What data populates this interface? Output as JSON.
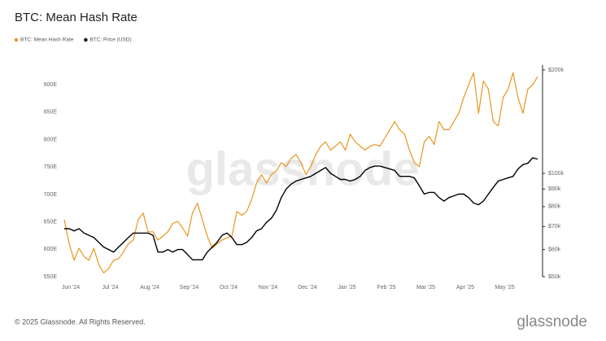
{
  "chart_data": {
    "type": "line",
    "title": "BTC: Mean Hash Rate",
    "watermark": "glassnode",
    "footer": "© 2025 Glassnode. All Rights Reserved.",
    "logo": "glassnode",
    "categories": [
      "Jun '24",
      null,
      null,
      null,
      null,
      null,
      null,
      null,
      "Jul '24",
      null,
      null,
      null,
      null,
      null,
      null,
      null,
      "Aug '24",
      null,
      null,
      null,
      null,
      null,
      null,
      null,
      "Sep '24",
      null,
      null,
      null,
      null,
      null,
      null,
      null,
      "Oct '24",
      null,
      null,
      null,
      null,
      null,
      null,
      null,
      "Nov '24",
      null,
      null,
      null,
      null,
      null,
      null,
      null,
      "Dec '24",
      null,
      null,
      null,
      null,
      null,
      null,
      null,
      "Jan '25",
      null,
      null,
      null,
      null,
      null,
      null,
      null,
      "Feb '25",
      null,
      null,
      null,
      null,
      null,
      null,
      null,
      "Mar '25",
      null,
      null,
      null,
      null,
      null,
      null,
      null,
      "Apr '25",
      null,
      null,
      null,
      null,
      null,
      null,
      null,
      "May '25",
      null,
      null,
      null,
      null,
      null,
      null,
      null,
      null
    ],
    "series": [
      {
        "name": "BTC: Mean Hash Rate",
        "color": "#e8961e",
        "axis": "y",
        "values": [
          654,
          610,
          580,
          602,
          587,
          580,
          602,
          572,
          557,
          565,
          580,
          583,
          595,
          610,
          617,
          654,
          666,
          632,
          632,
          617,
          624,
          632,
          647,
          651,
          639,
          624,
          666,
          684,
          654,
          624,
          602,
          610,
          617,
          621,
          624,
          669,
          662,
          669,
          691,
          721,
          736,
          721,
          736,
          743,
          758,
          751,
          766,
          773,
          758,
          736,
          751,
          773,
          788,
          796,
          781,
          788,
          796,
          781,
          810,
          796,
          788,
          781,
          788,
          791,
          788,
          803,
          818,
          833,
          818,
          810,
          781,
          758,
          751,
          796,
          806,
          791,
          833,
          818,
          818,
          833,
          848,
          877,
          900,
          922,
          848,
          907,
          892,
          833,
          825,
          877,
          892,
          922,
          877,
          848,
          892,
          900,
          915
        ]
      },
      {
        "name": "BTC: Price (USD)",
        "color": "#000000",
        "axis": "y2",
        "values": [
          69000,
          69000,
          68000,
          69000,
          67000,
          66000,
          65000,
          63000,
          61000,
          60000,
          59000,
          61000,
          63000,
          65000,
          67000,
          67000,
          67000,
          67000,
          66000,
          59000,
          59000,
          60000,
          59000,
          60000,
          60000,
          58000,
          56000,
          56000,
          56000,
          59000,
          61000,
          63000,
          66000,
          67000,
          65000,
          62000,
          62000,
          63000,
          65000,
          68000,
          69000,
          72000,
          74000,
          78000,
          85000,
          90000,
          93000,
          95000,
          96000,
          97000,
          98000,
          100000,
          102000,
          104000,
          100000,
          98000,
          96000,
          96000,
          95000,
          96000,
          98000,
          102000,
          104000,
          105000,
          105000,
          104000,
          103000,
          102000,
          98000,
          98000,
          98000,
          97000,
          92000,
          87000,
          88000,
          88000,
          85000,
          83000,
          85000,
          86000,
          87000,
          87000,
          85000,
          82000,
          81000,
          83000,
          87000,
          91000,
          95000,
          96000,
          97000,
          98000,
          103000,
          106000,
          107000,
          111000,
          110000
        ]
      }
    ],
    "ylim": [
      550,
      927
    ],
    "yticks": [
      {
        "value": 550,
        "label": "550E"
      },
      {
        "value": 600,
        "label": "600E"
      },
      {
        "value": 650,
        "label": "650E"
      },
      {
        "value": 700,
        "label": "700E"
      },
      {
        "value": 750,
        "label": "750E"
      },
      {
        "value": 800,
        "label": "800E"
      },
      {
        "value": 850,
        "label": "850E"
      },
      {
        "value": 900,
        "label": "900E"
      }
    ],
    "y2lim": [
      50000,
      200000
    ],
    "y2scale": "log",
    "y2ticks": [
      {
        "value": 50000,
        "label": "$50k"
      },
      {
        "value": 60000,
        "label": "$60k"
      },
      {
        "value": 70000,
        "label": "$70k"
      },
      {
        "value": 80000,
        "label": "$80k"
      },
      {
        "value": 90000,
        "label": "$90k"
      },
      {
        "value": 100000,
        "label": "$100k"
      },
      {
        "value": 200000,
        "label": "$200k"
      }
    ],
    "grid": false,
    "legend": "top-left"
  }
}
